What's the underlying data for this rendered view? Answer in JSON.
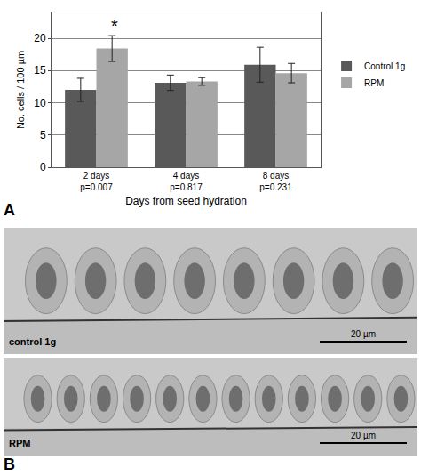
{
  "chart_data": {
    "type": "bar",
    "categories": [
      "2 days\np=0.007",
      "4 days\np=0.817",
      "8 days\np=0.231"
    ],
    "series": [
      {
        "name": "Control 1g",
        "color": "#595959",
        "values": [
          12.0,
          13.1,
          15.9
        ],
        "errors": [
          1.8,
          1.2,
          2.7
        ]
      },
      {
        "name": "RPM",
        "color": "#a6a6a6",
        "values": [
          18.4,
          13.3,
          14.6
        ],
        "errors": [
          2.0,
          0.6,
          1.5
        ]
      }
    ],
    "x_label": "Days from seed hydration",
    "y_label": "No. cells / 100 µm",
    "ylim": [
      0,
      24
    ],
    "yticks": [
      0,
      5,
      10,
      15,
      20
    ],
    "grid": true,
    "legend": "right",
    "annotations": [
      {
        "text": "*",
        "category_index": 0,
        "series": "RPM"
      }
    ]
  },
  "panel_labels": [
    "A",
    "B"
  ],
  "micrographs": [
    {
      "caption": "control 1g",
      "scale_bar": "20 µm"
    },
    {
      "caption": "RPM",
      "scale_bar": "20 µm"
    }
  ]
}
